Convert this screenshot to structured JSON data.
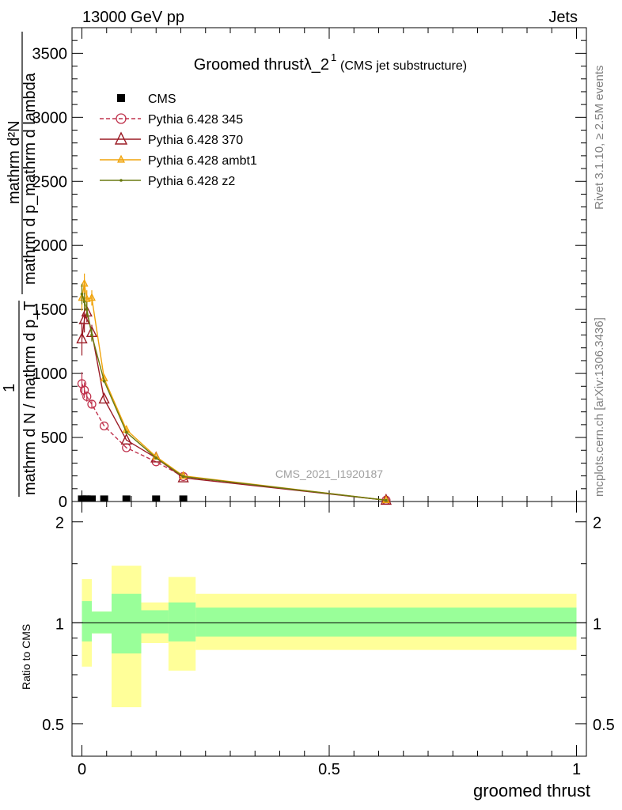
{
  "header": {
    "left": "13000 GeV pp",
    "right": "Jets",
    "title_main": "Groomed thrust",
    "title_lambda": "λ_2",
    "title_sup": "1",
    "title_sub": "(CMS jet substructure)",
    "analysis_id": "CMS_2021_I1920187",
    "side_top": "Rivet 3.1.10, ≥ 2.5M events",
    "side_bottom": "mcplots.cern.ch [arXiv:1306.3436]"
  },
  "yaxis_main": {
    "numerator": "mathrm d²N",
    "one": "1",
    "denominator_upper": "mathrm d p_mathrm d lambda",
    "denominator_lower": "mathrm d N / mathrm d p_T",
    "label_lines": [
      "mathrm d²N",
      "mathrm d p_mathrm d lambda",
      "1",
      "mathrm d N / mathrm d p_T"
    ]
  },
  "yaxis_ratio": {
    "label": "Ratio to CMS"
  },
  "xaxis": {
    "label": "groomed thrust"
  },
  "legend": [
    {
      "label": "CMS",
      "color": "#000000",
      "marker": "square"
    },
    {
      "label": "Pythia 6.428 345",
      "color": "#c0334d",
      "marker": "circle",
      "dashed": true
    },
    {
      "label": "Pythia 6.428 370",
      "color": "#9b1b25",
      "marker": "triangle"
    },
    {
      "label": "Pythia 6.428 ambt1",
      "color": "#f0a30a",
      "marker": "triangle-filled"
    },
    {
      "label": "Pythia 6.428 z2",
      "color": "#6a7a10",
      "marker": "dot"
    }
  ],
  "chart_data": {
    "type": "line",
    "xlim": [
      -0.02,
      1.02
    ],
    "ylim": [
      0,
      3700
    ],
    "ratio_ylim_log": [
      0.4,
      2.3
    ],
    "main_yticks": [
      {
        "v": 0,
        "label": "0"
      },
      {
        "v": 500,
        "label": "500"
      },
      {
        "v": 1000,
        "label": "1000"
      },
      {
        "v": 1500,
        "label": "1500"
      },
      {
        "v": 2000,
        "label": "2000"
      },
      {
        "v": 2500,
        "label": "2500"
      },
      {
        "v": 3000,
        "label": "3000"
      },
      {
        "v": 3500,
        "label": "3500"
      }
    ],
    "ratio_yticks": [
      {
        "v": 0.5,
        "label": "0.5"
      },
      {
        "v": 1,
        "label": "1"
      },
      {
        "v": 2,
        "label": "2"
      }
    ],
    "xticks": [
      {
        "v": 0,
        "label": "0"
      },
      {
        "v": 0.5,
        "label": "0.5"
      },
      {
        "v": 1,
        "label": "1"
      }
    ],
    "cms_x": [
      0.0,
      0.005,
      0.01,
      0.02,
      0.045,
      0.09,
      0.15,
      0.205
    ],
    "cms_y": [
      10,
      10,
      10,
      10,
      10,
      10,
      10,
      10
    ],
    "series": [
      {
        "name": "Pythia 6.428 345",
        "x": [
          0.0,
          0.005,
          0.01,
          0.02,
          0.045,
          0.09,
          0.15,
          0.205,
          0.615
        ],
        "y": [
          920,
          870,
          820,
          760,
          590,
          420,
          310,
          195,
          10
        ],
        "err": [
          90,
          60,
          40,
          30,
          0,
          0,
          0,
          0,
          0
        ]
      },
      {
        "name": "Pythia 6.428 370",
        "x": [
          0.0,
          0.005,
          0.01,
          0.02,
          0.045,
          0.09,
          0.15,
          0.205,
          0.615
        ],
        "y": [
          1270,
          1420,
          1480,
          1320,
          800,
          480,
          340,
          185,
          10
        ],
        "err": [
          130,
          100,
          80,
          60,
          0,
          0,
          0,
          0,
          0
        ]
      },
      {
        "name": "Pythia 6.428 ambt1",
        "x": [
          0.0,
          0.005,
          0.01,
          0.02,
          0.045,
          0.09,
          0.15,
          0.205,
          0.615
        ],
        "y": [
          1590,
          1700,
          1580,
          1590,
          960,
          560,
          350,
          200,
          10
        ],
        "err": [
          100,
          80,
          70,
          60,
          0,
          0,
          0,
          0,
          0
        ]
      },
      {
        "name": "Pythia 6.428 z2",
        "x": [
          0.0,
          0.005,
          0.01,
          0.02,
          0.045,
          0.09,
          0.15,
          0.205,
          0.615
        ],
        "y": [
          1620,
          1560,
          1500,
          1300,
          940,
          540,
          340,
          195,
          10
        ],
        "err": [
          80,
          70,
          60,
          50,
          0,
          0,
          0,
          0,
          0
        ]
      }
    ],
    "ratio_bands": [
      {
        "x0": 0.0,
        "x1": 0.02,
        "g_lo": 0.88,
        "g_hi": 1.16,
        "y_lo": 0.74,
        "y_hi": 1.35
      },
      {
        "x0": 0.02,
        "x1": 0.06,
        "g_lo": 0.93,
        "g_hi": 1.08,
        "y_lo": 0.93,
        "y_hi": 1.08
      },
      {
        "x0": 0.06,
        "x1": 0.12,
        "g_lo": 0.81,
        "g_hi": 1.22,
        "y_lo": 0.56,
        "y_hi": 1.48
      },
      {
        "x0": 0.12,
        "x1": 0.175,
        "g_lo": 0.93,
        "g_hi": 1.09,
        "y_lo": 0.87,
        "y_hi": 1.15
      },
      {
        "x0": 0.175,
        "x1": 0.23,
        "g_lo": 0.88,
        "g_hi": 1.15,
        "y_lo": 0.72,
        "y_hi": 1.37
      },
      {
        "x0": 0.23,
        "x1": 1.0,
        "g_lo": 0.91,
        "g_hi": 1.11,
        "y_lo": 0.83,
        "y_hi": 1.22
      }
    ],
    "colors": {
      "green": "#99ff99",
      "yellow": "#ffff99"
    }
  }
}
